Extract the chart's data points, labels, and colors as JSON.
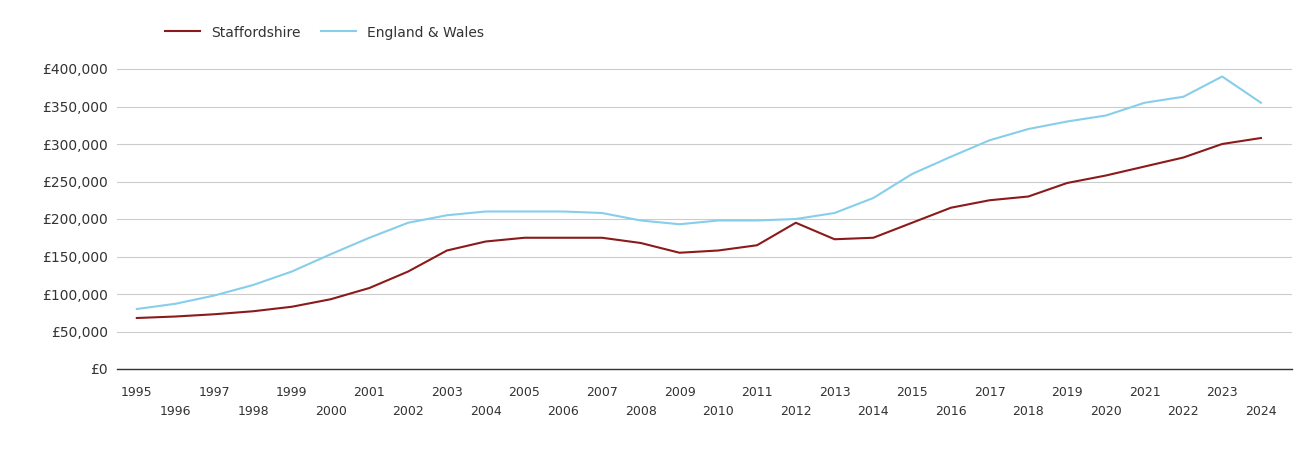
{
  "staffordshire": {
    "years": [
      1995,
      1996,
      1997,
      1998,
      1999,
      2000,
      2001,
      2002,
      2003,
      2004,
      2005,
      2006,
      2007,
      2008,
      2009,
      2010,
      2011,
      2012,
      2013,
      2014,
      2015,
      2016,
      2017,
      2018,
      2019,
      2020,
      2021,
      2022,
      2023,
      2024
    ],
    "values": [
      68000,
      70000,
      73000,
      77000,
      83000,
      93000,
      108000,
      130000,
      158000,
      170000,
      175000,
      175000,
      175000,
      168000,
      155000,
      158000,
      165000,
      195000,
      173000,
      175000,
      195000,
      215000,
      225000,
      230000,
      248000,
      258000,
      270000,
      282000,
      300000,
      308000
    ]
  },
  "england_wales": {
    "years": [
      1995,
      1996,
      1997,
      1998,
      1999,
      2000,
      2001,
      2002,
      2003,
      2004,
      2005,
      2006,
      2007,
      2008,
      2009,
      2010,
      2011,
      2012,
      2013,
      2014,
      2015,
      2016,
      2017,
      2018,
      2019,
      2020,
      2021,
      2022,
      2023,
      2024
    ],
    "values": [
      80000,
      87000,
      98000,
      112000,
      130000,
      153000,
      175000,
      195000,
      205000,
      210000,
      210000,
      210000,
      208000,
      198000,
      193000,
      198000,
      198000,
      200000,
      208000,
      228000,
      260000,
      283000,
      305000,
      320000,
      330000,
      338000,
      355000,
      363000,
      390000,
      355000
    ]
  },
  "staffordshire_color": "#8B1A1A",
  "england_wales_color": "#87CEEB",
  "background_color": "#ffffff",
  "grid_color": "#cccccc",
  "ylim": [
    0,
    420000
  ],
  "yticks": [
    0,
    50000,
    100000,
    150000,
    200000,
    250000,
    300000,
    350000,
    400000
  ],
  "legend_labels": [
    "Staffordshire",
    "England & Wales"
  ],
  "odd_years": [
    1995,
    1997,
    1999,
    2001,
    2003,
    2005,
    2007,
    2009,
    2011,
    2013,
    2015,
    2017,
    2019,
    2021,
    2023
  ],
  "even_years": [
    1996,
    1998,
    2000,
    2002,
    2004,
    2006,
    2008,
    2010,
    2012,
    2014,
    2016,
    2018,
    2020,
    2022,
    2024
  ]
}
